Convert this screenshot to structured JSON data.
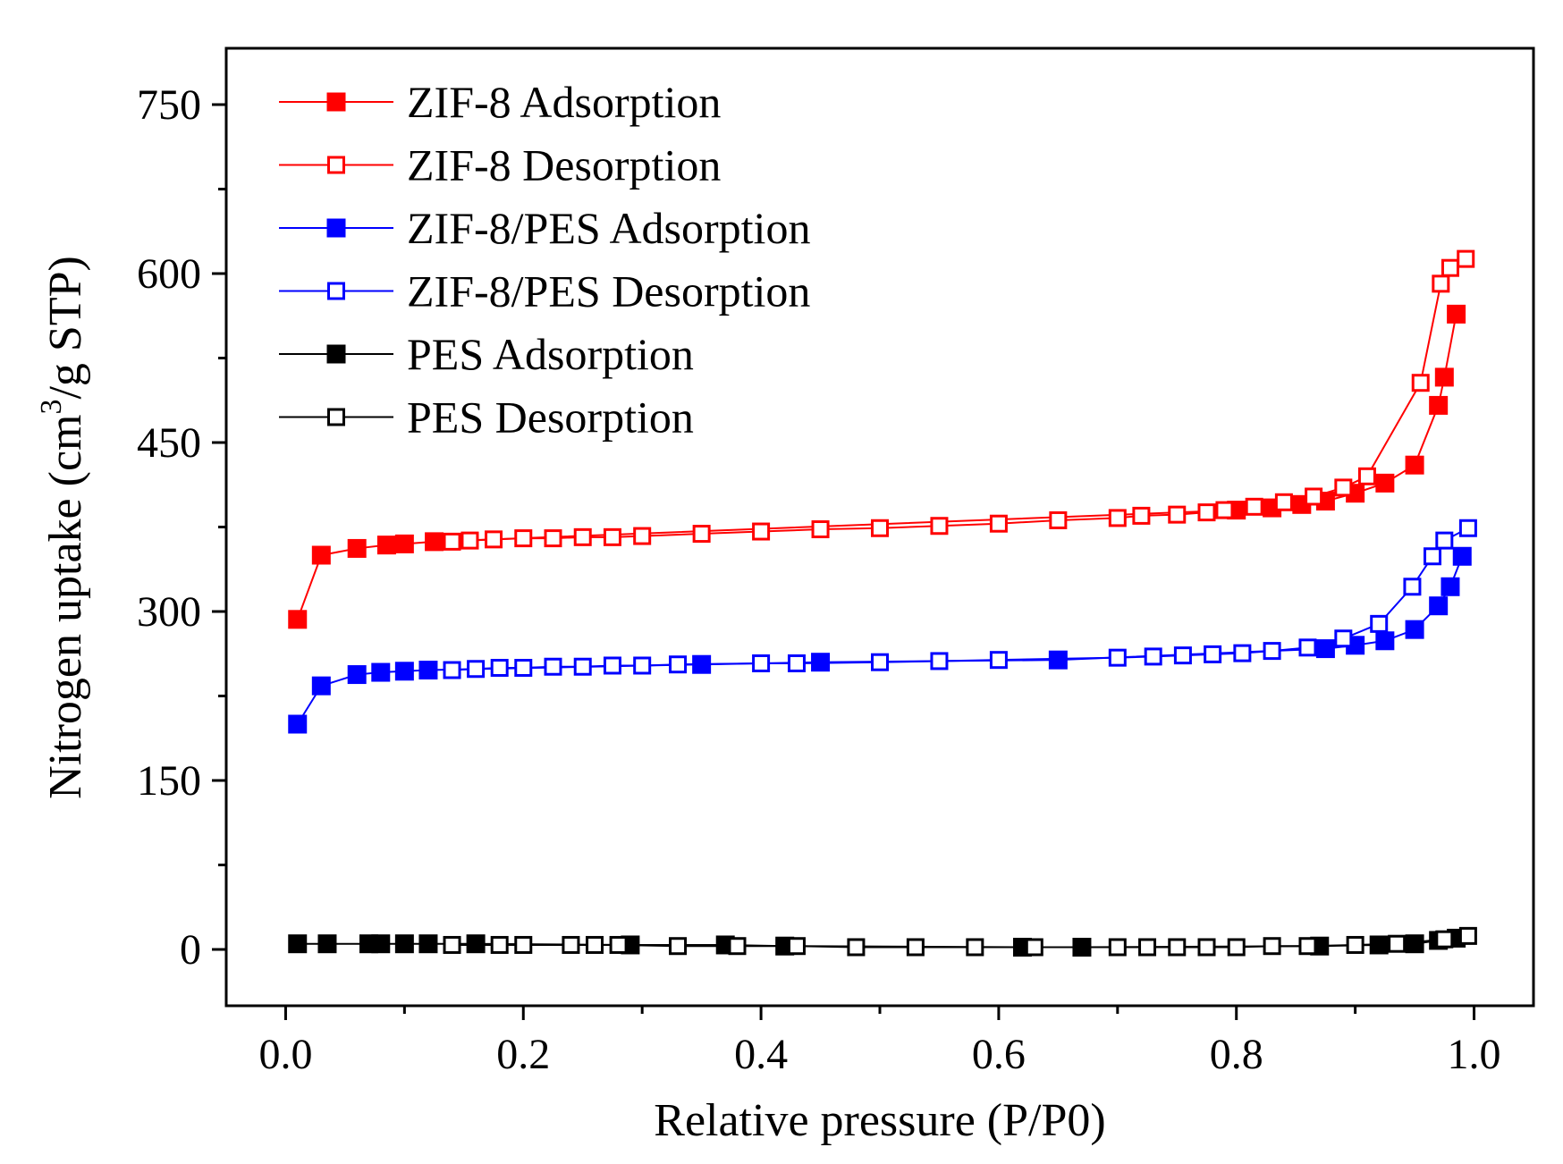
{
  "chart_data": {
    "type": "scatter",
    "title": "",
    "xlabel": "Relative pressure (P/P0)",
    "ylabel_parts": [
      "Nitrogen uptake (cm",
      "3",
      "/g STP)"
    ],
    "xlim": [
      -0.05,
      1.05
    ],
    "ylim": [
      -50,
      800
    ],
    "xticks": [
      0.0,
      0.2,
      0.4,
      0.6,
      0.8,
      1.0
    ],
    "xtick_labels": [
      "0.0",
      "0.2",
      "0.4",
      "0.6",
      "0.8",
      "1.0"
    ],
    "yticks": [
      0,
      150,
      300,
      450,
      600,
      750
    ],
    "ytick_labels": [
      "0",
      "150",
      "300",
      "450",
      "600",
      "750"
    ],
    "legend_position": "top-left",
    "series": [
      {
        "name": "ZIF-8 Adsorption",
        "color": "#ff0000",
        "filled": true,
        "x": [
          0.01,
          0.03,
          0.06,
          0.085,
          0.1,
          0.125,
          0.8,
          0.83,
          0.855,
          0.875,
          0.9,
          0.925,
          0.95,
          0.97,
          0.975,
          0.985
        ],
        "y": [
          293,
          350,
          356,
          359,
          360,
          362,
          390,
          392,
          395,
          398,
          405,
          414,
          430,
          483,
          508,
          564
        ]
      },
      {
        "name": "ZIF-8 Desorption",
        "color": "#ff0000",
        "filled": false,
        "x": [
          0.993,
          0.98,
          0.972,
          0.955,
          0.91,
          0.89,
          0.865,
          0.84,
          0.815,
          0.79,
          0.775,
          0.75,
          0.72,
          0.7,
          0.65,
          0.6,
          0.55,
          0.5,
          0.45,
          0.4,
          0.35,
          0.3,
          0.275,
          0.25,
          0.225,
          0.2,
          0.175,
          0.155,
          0.14
        ],
        "y": [
          613,
          605,
          591,
          503,
          420,
          410,
          402,
          397,
          393,
          390,
          388,
          386,
          385,
          383,
          381,
          378,
          376,
          374,
          373,
          371,
          369,
          367,
          366,
          366,
          365,
          365,
          364,
          363,
          362
        ]
      },
      {
        "name": "ZIF-8/PES Adsorption",
        "color": "#0000ff",
        "filled": true,
        "x": [
          0.01,
          0.03,
          0.06,
          0.08,
          0.1,
          0.12,
          0.35,
          0.45,
          0.65,
          0.875,
          0.9,
          0.925,
          0.95,
          0.97,
          0.98,
          0.99
        ],
        "y": [
          200,
          234,
          244,
          246,
          247,
          248,
          253,
          255,
          257,
          267,
          270,
          274,
          284,
          305,
          322,
          349
        ]
      },
      {
        "name": "ZIF-8/PES Desorption",
        "color": "#0000ff",
        "filled": false,
        "x": [
          0.995,
          0.975,
          0.965,
          0.948,
          0.92,
          0.89,
          0.86,
          0.83,
          0.805,
          0.78,
          0.755,
          0.73,
          0.7,
          0.6,
          0.55,
          0.5,
          0.43,
          0.4,
          0.33,
          0.3,
          0.275,
          0.25,
          0.225,
          0.2,
          0.18,
          0.16,
          0.14
        ],
        "y": [
          374,
          363,
          349,
          322,
          289,
          276,
          268,
          265,
          263,
          262,
          261,
          260,
          259,
          257,
          256,
          255,
          254,
          254,
          253,
          252,
          252,
          251,
          251,
          250,
          250,
          249,
          248
        ]
      },
      {
        "name": "PES Adsorption",
        "color": "#000000",
        "filled": true,
        "x": [
          0.01,
          0.035,
          0.07,
          0.08,
          0.1,
          0.12,
          0.16,
          0.29,
          0.37,
          0.42,
          0.62,
          0.67,
          0.87,
          0.92,
          0.95,
          0.97,
          0.985
        ],
        "y": [
          5,
          5,
          5,
          5,
          5,
          5,
          5,
          4,
          4,
          3,
          2,
          2,
          3,
          4,
          5,
          8,
          10
        ]
      },
      {
        "name": "PES Desorption",
        "color": "#000000",
        "filled": false,
        "x": [
          0.995,
          0.975,
          0.935,
          0.9,
          0.86,
          0.83,
          0.8,
          0.775,
          0.75,
          0.725,
          0.7,
          0.63,
          0.58,
          0.53,
          0.48,
          0.43,
          0.38,
          0.33,
          0.28,
          0.26,
          0.24,
          0.2,
          0.18,
          0.14
        ],
        "y": [
          12,
          9,
          5,
          4,
          3,
          3,
          2,
          2,
          2,
          2,
          2,
          2,
          2,
          2,
          2,
          3,
          3,
          3,
          4,
          4,
          4,
          4,
          4,
          4
        ]
      }
    ]
  }
}
